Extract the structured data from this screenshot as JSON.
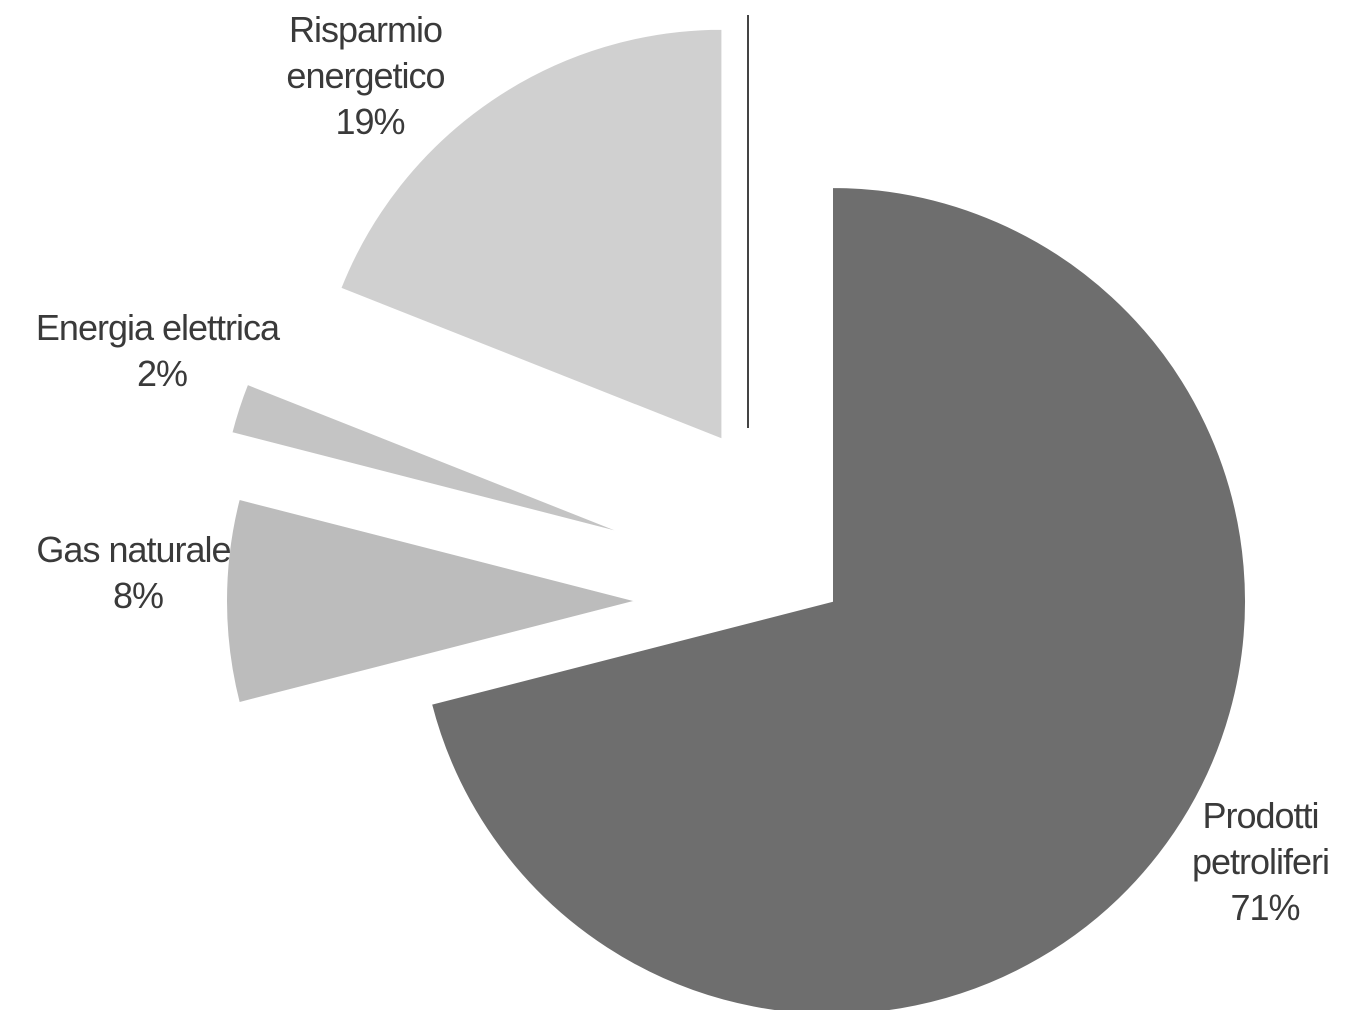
{
  "chart_data": {
    "type": "pie",
    "title": "",
    "slices": [
      {
        "label": "Prodotti petroliferi",
        "value": 71,
        "value_label": "71%",
        "color": "#6e6e6e",
        "exploded": false
      },
      {
        "label": "Gas naturale",
        "value": 8,
        "value_label": "8%",
        "color": "#bcbcbc",
        "exploded": true
      },
      {
        "label": "Energia elettrica",
        "value": 2,
        "value_label": "2%",
        "color": "#c4c4c4",
        "exploded": true
      },
      {
        "label": "Risparmio energetico",
        "value": 19,
        "value_label": "19%",
        "color": "#d0d0d0",
        "exploded": true
      }
    ],
    "label_lines": {
      "prodotti": [
        "Prodotti",
        "petroliferi",
        "71%"
      ],
      "gas": [
        "Gas naturale",
        "8%"
      ],
      "energia": [
        "Energia elettrica",
        "2%"
      ],
      "risparmio": [
        "Risparmio",
        "energetico",
        "19%"
      ]
    },
    "legend": "none"
  }
}
